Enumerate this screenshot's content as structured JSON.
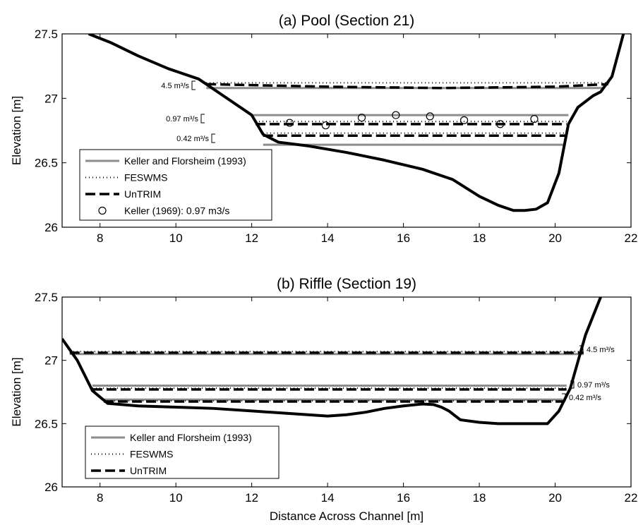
{
  "chart_data": [
    {
      "type": "line",
      "title": "(a) Pool (Section 21)",
      "xlabel": "",
      "ylabel": "Elevation [m]",
      "xlim": [
        7,
        22
      ],
      "ylim": [
        26,
        27.5
      ],
      "xticks": [
        "8",
        "10",
        "12",
        "14",
        "16",
        "18",
        "20",
        "22"
      ],
      "yticks": [
        "26",
        "26.5",
        "27",
        "27.5"
      ],
      "colors": {
        "keller_florsheim": "#8c8c8c",
        "model": "#000000",
        "bed": "#000000"
      },
      "bed_profile": {
        "x": [
          7.7,
          8.3,
          9.0,
          9.8,
          10.6,
          11.2,
          12.0,
          12.3,
          12.7,
          13.5,
          14.5,
          15.5,
          16.5,
          17.3,
          18.0,
          18.5,
          18.9,
          19.2,
          19.5,
          19.8,
          20.1,
          20.35,
          20.6,
          21.0,
          21.2,
          21.5,
          21.8
        ],
        "y": [
          27.5,
          27.43,
          27.33,
          27.23,
          27.15,
          27.03,
          26.87,
          26.72,
          26.66,
          26.63,
          26.58,
          26.52,
          26.45,
          26.37,
          26.24,
          26.17,
          26.13,
          26.13,
          26.14,
          26.19,
          26.42,
          26.8,
          26.93,
          27.02,
          27.05,
          27.17,
          27.5
        ]
      },
      "series": [
        {
          "name": "Keller and Florsheim (1993)",
          "style": "solid-gray",
          "levels": [
            {
              "x": [
                10.8,
                21.3
              ],
              "y": [
                27.08,
                27.08
              ]
            },
            {
              "x": [
                12.0,
                20.35
              ],
              "y": [
                26.87,
                26.87
              ]
            },
            {
              "x": [
                12.3,
                20.25
              ],
              "y": [
                26.64,
                26.64
              ]
            }
          ]
        },
        {
          "name": "FESWMS",
          "style": "dotted",
          "levels": [
            {
              "x": [
                10.8,
                21.5
              ],
              "y": [
                27.12,
                27.12
              ]
            },
            {
              "x": [
                12.1,
                20.3
              ],
              "y": [
                26.82,
                26.82
              ]
            },
            {
              "x": [
                12.3,
                20.3
              ],
              "y": [
                26.73,
                26.73
              ]
            }
          ]
        },
        {
          "name": "UnTRIM",
          "style": "dashed",
          "levels": [
            {
              "x": [
                10.8,
                14.0,
                17.0,
                20.0,
                21.4
              ],
              "y": [
                27.11,
                27.09,
                27.08,
                27.09,
                27.11
              ]
            },
            {
              "x": [
                12.1,
                20.3
              ],
              "y": [
                26.8,
                26.8
              ]
            },
            {
              "x": [
                12.3,
                20.3
              ],
              "y": [
                26.71,
                26.71
              ]
            }
          ]
        },
        {
          "name": "Keller (1969): 0.97 m3/s",
          "style": "circle-marker",
          "x": [
            13.0,
            13.95,
            14.9,
            15.8,
            16.7,
            17.6,
            18.55,
            19.45
          ],
          "y": [
            26.81,
            26.79,
            26.85,
            26.87,
            26.86,
            26.83,
            26.8,
            26.84
          ]
        }
      ],
      "annotations": [
        "4.5 m³/s",
        "0.97 m³/s",
        "0.42 m³/s"
      ],
      "legend": {
        "placement": "lower-left",
        "entries": [
          "Keller and Florsheim (1993)",
          "FESWMS",
          "UnTRIM",
          "Keller (1969): 0.97 m3/s"
        ]
      },
      "grid": false
    },
    {
      "type": "line",
      "title": "(b) Riffle (Section 19)",
      "xlabel": "Distance Across Channel [m]",
      "ylabel": "Elevation [m]",
      "xlim": [
        7,
        22
      ],
      "ylim": [
        26,
        27.5
      ],
      "xticks": [
        "8",
        "10",
        "12",
        "14",
        "16",
        "18",
        "20",
        "22"
      ],
      "yticks": [
        "26",
        "26.5",
        "27",
        "27.5"
      ],
      "colors": {
        "keller_florsheim": "#8c8c8c",
        "model": "#000000",
        "bed": "#000000"
      },
      "bed_profile": {
        "x": [
          7.0,
          7.4,
          7.8,
          8.2,
          9.0,
          10.0,
          11.0,
          12.0,
          13.0,
          14.0,
          14.5,
          15.0,
          15.5,
          16.0,
          16.5,
          16.8,
          17.0,
          17.2,
          17.5,
          18.0,
          18.5,
          19.0,
          19.5,
          19.8,
          20.1,
          20.4,
          20.8,
          21.2
        ],
        "y": [
          27.17,
          27.0,
          26.76,
          26.66,
          26.64,
          26.63,
          26.62,
          26.6,
          26.58,
          26.56,
          26.57,
          26.59,
          26.62,
          26.64,
          26.655,
          26.65,
          26.63,
          26.6,
          26.53,
          26.51,
          26.5,
          26.5,
          26.5,
          26.5,
          26.6,
          26.78,
          27.2,
          27.5
        ]
      },
      "series": [
        {
          "name": "Keller and Florsheim (1993)",
          "style": "solid-gray",
          "levels": [
            {
              "x": [
                7.2,
                20.75
              ],
              "y": [
                27.05,
                27.05
              ]
            },
            {
              "x": [
                7.8,
                20.3
              ],
              "y": [
                26.8,
                26.8
              ]
            },
            {
              "x": [
                8.1,
                20.2
              ],
              "y": [
                26.69,
                26.69
              ]
            }
          ]
        },
        {
          "name": "FESWMS",
          "style": "dotted",
          "levels": [
            {
              "x": [
                7.2,
                20.75
              ],
              "y": [
                27.07,
                27.07
              ]
            },
            {
              "x": [
                7.8,
                20.3
              ],
              "y": [
                26.78,
                26.78
              ]
            },
            {
              "x": [
                8.1,
                20.2
              ],
              "y": [
                26.68,
                26.68
              ]
            }
          ]
        },
        {
          "name": "UnTRIM",
          "style": "dashed",
          "levels": [
            {
              "x": [
                7.2,
                20.75
              ],
              "y": [
                27.06,
                27.06
              ]
            },
            {
              "x": [
                7.8,
                20.3
              ],
              "y": [
                26.77,
                26.77
              ]
            },
            {
              "x": [
                8.1,
                20.2
              ],
              "y": [
                26.675,
                26.675
              ]
            }
          ]
        }
      ],
      "annotations": [
        "4.5 m³/s",
        "0.97 m³/s",
        "0.42 m³/s"
      ],
      "legend": {
        "placement": "lower-left",
        "entries": [
          "Keller and Florsheim (1993)",
          "FESWMS",
          "UnTRIM"
        ]
      },
      "grid": false
    }
  ]
}
